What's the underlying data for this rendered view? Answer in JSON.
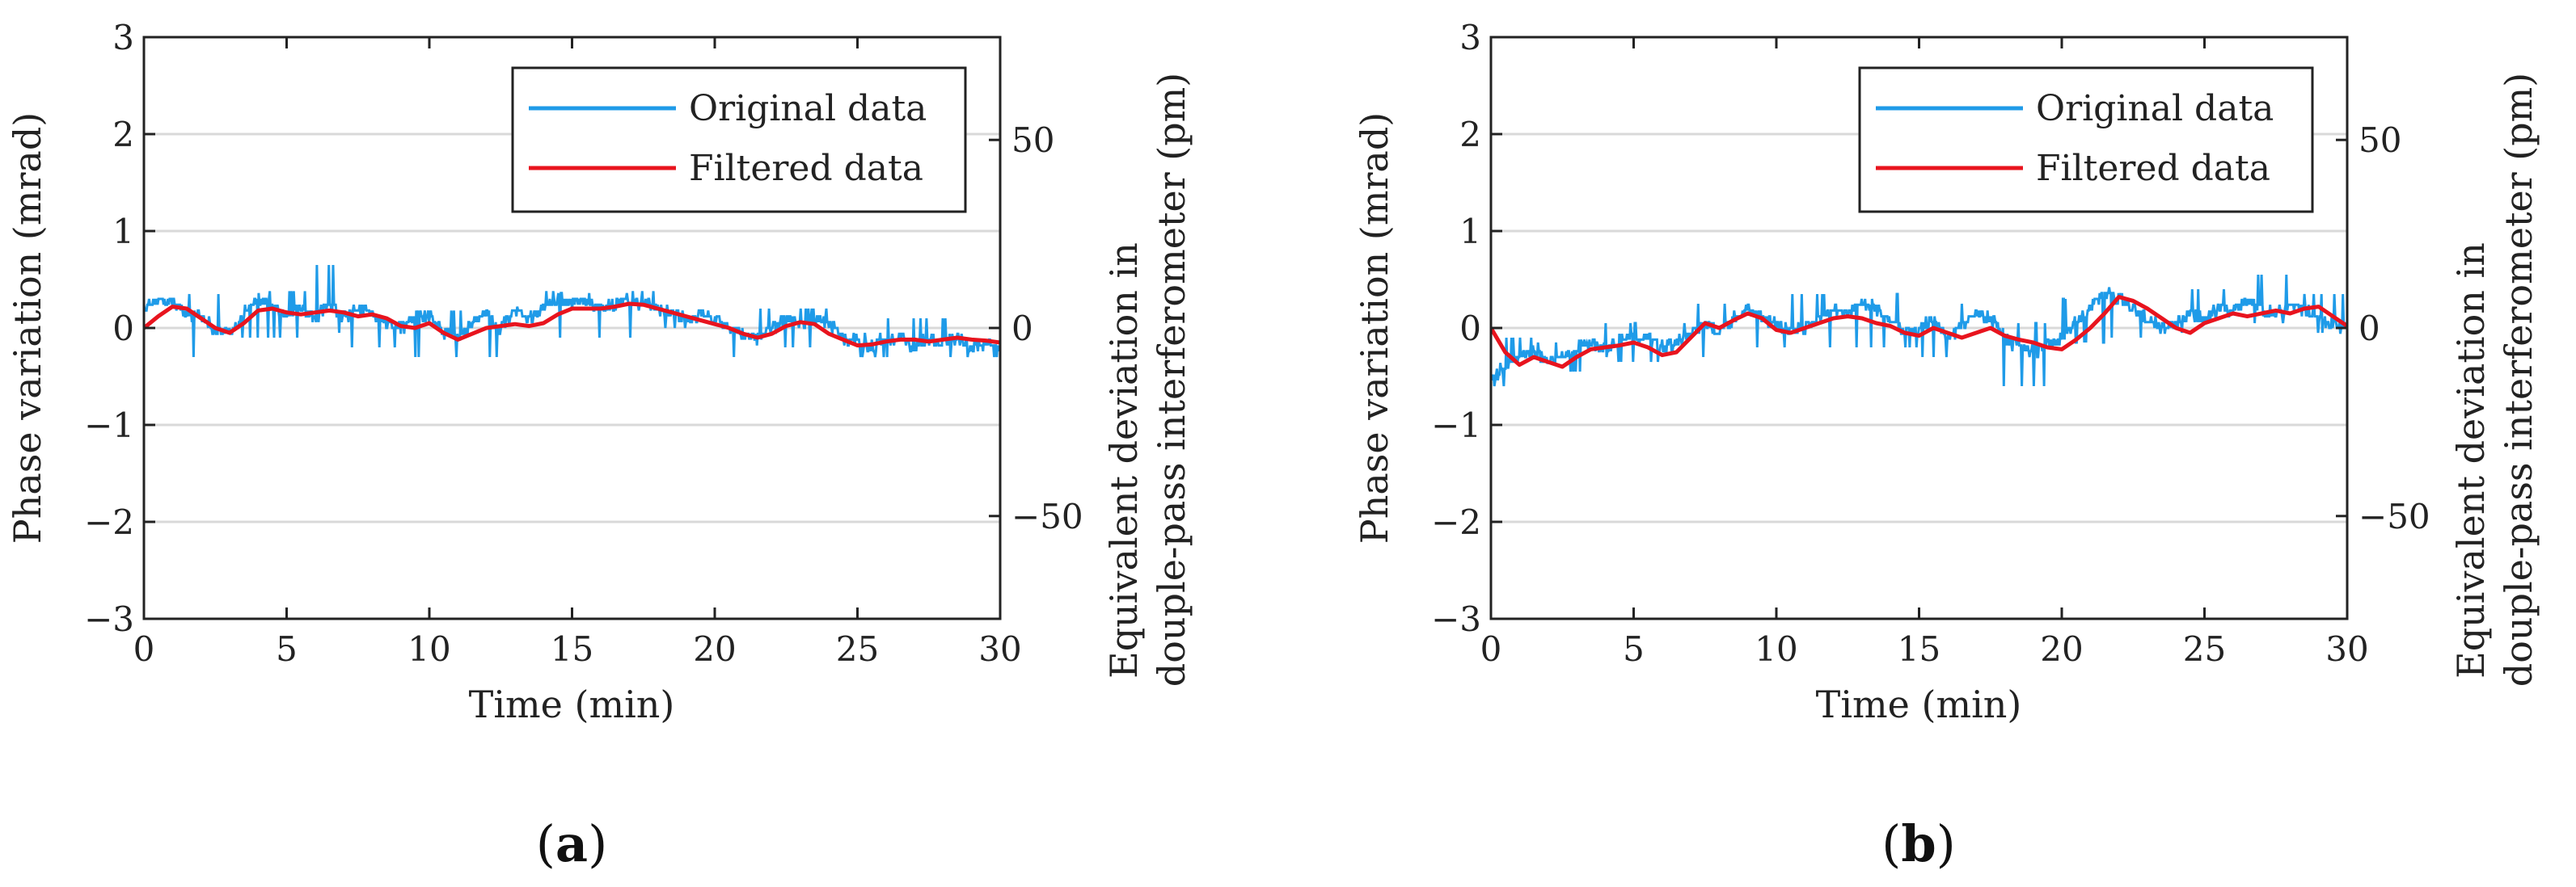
{
  "colors": {
    "original": "#1f9be8",
    "filtered": "#e8141e",
    "grid": "#d9d9d9",
    "axis": "#222222"
  },
  "chart_data": [
    {
      "type": "line",
      "panel_label": "(a)",
      "xlabel": "Time (min)",
      "ylabel": "Phase variation (mrad)",
      "ylabel_right": [
        "Equivalent  deviation in",
        "douple-pass interferometer (pm)"
      ],
      "xlim": [
        0,
        30
      ],
      "ylim": [
        -3,
        3
      ],
      "xticks": [
        0,
        5,
        10,
        15,
        20,
        25,
        30
      ],
      "yticks": [
        -3,
        -2,
        -1,
        0,
        1,
        2,
        3
      ],
      "yticks_right": [
        50,
        0,
        -50
      ],
      "yticks_right_mrad": [
        1.94,
        0,
        -1.94
      ],
      "grid": "horizontal",
      "legend_position": "top-right",
      "series": [
        {
          "name": "Original data",
          "x": [
            0,
            0.5,
            1,
            1.5,
            2,
            2.5,
            3,
            3.5,
            4,
            4.5,
            5,
            5.5,
            6,
            6.5,
            7,
            7.5,
            8,
            8.5,
            9,
            9.5,
            10,
            10.5,
            11,
            11.5,
            12,
            12.5,
            13,
            13.5,
            14,
            14.5,
            15,
            15.5,
            16,
            16.5,
            17,
            17.5,
            18,
            18.5,
            19,
            19.5,
            20,
            20.5,
            21,
            21.5,
            22,
            22.5,
            23,
            23.5,
            24,
            24.5,
            25,
            25.5,
            26,
            26.5,
            27,
            27.5,
            28,
            28.5,
            29,
            29.5,
            30
          ],
          "values": [
            0.2,
            0.3,
            0.25,
            0.15,
            0.1,
            0.0,
            -0.05,
            0.15,
            0.3,
            0.2,
            0.15,
            0.2,
            0.1,
            0.25,
            0.1,
            0.2,
            0.15,
            0.05,
            0.0,
            0.1,
            0.15,
            -0.05,
            -0.1,
            0.05,
            0.15,
            0.0,
            0.2,
            0.1,
            0.2,
            0.3,
            0.25,
            0.3,
            0.2,
            0.25,
            0.3,
            0.25,
            0.2,
            0.15,
            0.1,
            0.15,
            0.1,
            0.0,
            -0.05,
            -0.1,
            0.0,
            0.1,
            0.05,
            0.1,
            0.05,
            -0.1,
            -0.15,
            -0.2,
            -0.15,
            -0.1,
            -0.2,
            -0.1,
            -0.15,
            -0.1,
            -0.2,
            -0.15,
            -0.2
          ],
          "ranges": [
            [
              0,
              0.15,
              -0.1,
              0.38
            ],
            [
              1.5,
              3,
              -0.3,
              0.35
            ],
            [
              3,
              6,
              -0.1,
              0.38
            ],
            [
              6,
              7,
              -0.05,
              0.65
            ],
            [
              7,
              9.5,
              -0.2,
              0.35
            ],
            [
              9.5,
              13,
              -0.3,
              0.18
            ],
            [
              13,
              14,
              -0.1,
              0.22
            ],
            [
              14,
              18,
              -0.1,
              0.38
            ],
            [
              18,
              20.5,
              0.0,
              0.2
            ],
            [
              20.5,
              21.5,
              -0.3,
              0.15
            ],
            [
              21.5,
              24,
              -0.2,
              0.2
            ],
            [
              24,
              26,
              -0.3,
              -0.05
            ],
            [
              26,
              30,
              -0.3,
              0.1
            ]
          ]
        },
        {
          "name": "Filtered data",
          "x": [
            0,
            0.5,
            1,
            1.5,
            2,
            2.5,
            3,
            3.5,
            4,
            4.5,
            5,
            5.5,
            6,
            6.5,
            7,
            7.5,
            8,
            8.5,
            9,
            9.5,
            10,
            10.5,
            11,
            11.5,
            12,
            12.5,
            13,
            13.5,
            14,
            14.5,
            15,
            15.5,
            16,
            16.5,
            17,
            17.5,
            18,
            18.5,
            19,
            19.5,
            20,
            20.5,
            21,
            21.5,
            22,
            22.5,
            23,
            23.5,
            24,
            24.5,
            25,
            25.5,
            26,
            26.5,
            27,
            27.5,
            28,
            28.5,
            29,
            29.5,
            30
          ],
          "values": [
            0.0,
            0.12,
            0.22,
            0.2,
            0.1,
            0.0,
            -0.05,
            0.05,
            0.18,
            0.2,
            0.16,
            0.14,
            0.16,
            0.18,
            0.16,
            0.12,
            0.14,
            0.1,
            0.02,
            0.0,
            0.05,
            -0.05,
            -0.12,
            -0.06,
            0.0,
            0.02,
            0.04,
            0.02,
            0.05,
            0.14,
            0.2,
            0.2,
            0.2,
            0.22,
            0.25,
            0.24,
            0.2,
            0.16,
            0.12,
            0.08,
            0.04,
            0.0,
            -0.06,
            -0.1,
            -0.06,
            0.02,
            0.06,
            0.04,
            -0.06,
            -0.12,
            -0.18,
            -0.17,
            -0.14,
            -0.12,
            -0.12,
            -0.14,
            -0.12,
            -0.1,
            -0.12,
            -0.13,
            -0.15
          ]
        }
      ]
    },
    {
      "type": "line",
      "panel_label": "(b)",
      "xlabel": "Time (min)",
      "ylabel": "Phase variation (mrad)",
      "ylabel_right": [
        "Equivalent  deviation in",
        "douple-pass interferometer (pm)"
      ],
      "xlim": [
        0,
        30
      ],
      "ylim": [
        -3,
        3
      ],
      "xticks": [
        0,
        5,
        10,
        15,
        20,
        25,
        30
      ],
      "yticks": [
        -3,
        -2,
        -1,
        0,
        1,
        2,
        3
      ],
      "yticks_right": [
        50,
        0,
        -50
      ],
      "yticks_right_mrad": [
        1.94,
        0,
        -1.94
      ],
      "grid": "horizontal",
      "legend_position": "top-right",
      "series": [
        {
          "name": "Original data",
          "x": [
            0,
            0.5,
            1,
            1.5,
            2,
            2.5,
            3,
            3.5,
            4,
            4.5,
            5,
            5.5,
            6,
            6.5,
            7,
            7.5,
            8,
            8.5,
            9,
            9.5,
            10,
            10.5,
            11,
            11.5,
            12,
            12.5,
            13,
            13.5,
            14,
            14.5,
            15,
            15.5,
            16,
            16.5,
            17,
            17.5,
            18,
            18.5,
            19,
            19.5,
            20,
            20.5,
            21,
            21.5,
            22,
            22.5,
            23,
            23.5,
            24,
            24.5,
            25,
            25.5,
            26,
            26.5,
            27,
            27.5,
            28,
            28.5,
            29,
            29.5,
            30
          ],
          "values": [
            -0.5,
            -0.4,
            -0.3,
            -0.25,
            -0.35,
            -0.3,
            -0.2,
            -0.15,
            -0.25,
            -0.1,
            -0.15,
            -0.1,
            -0.2,
            -0.15,
            -0.05,
            0.05,
            -0.05,
            0.1,
            0.2,
            0.1,
            0.05,
            -0.05,
            0.0,
            0.1,
            0.2,
            0.15,
            0.25,
            0.2,
            0.1,
            -0.05,
            0.0,
            0.1,
            -0.1,
            0.0,
            0.15,
            0.1,
            -0.1,
            -0.2,
            -0.25,
            -0.15,
            -0.1,
            0.05,
            0.2,
            0.35,
            0.3,
            0.2,
            0.1,
            0.0,
            0.05,
            0.15,
            0.1,
            0.2,
            0.15,
            0.3,
            0.2,
            0.15,
            0.25,
            0.2,
            0.1,
            0.05,
            0.0
          ],
          "ranges": [
            [
              0,
              1.5,
              -0.6,
              -0.1
            ],
            [
              1.5,
              4,
              -0.45,
              -0.15
            ],
            [
              4,
              7,
              -0.35,
              0.05
            ],
            [
              7,
              9,
              -0.3,
              0.25
            ],
            [
              9,
              12,
              -0.2,
              0.35
            ],
            [
              12,
              15,
              -0.2,
              0.35
            ],
            [
              15,
              17,
              -0.3,
              0.25
            ],
            [
              17,
              20,
              -0.6,
              0.05
            ],
            [
              20,
              21.5,
              -0.15,
              0.3
            ],
            [
              21.5,
              24,
              -0.1,
              0.55
            ],
            [
              24,
              26.5,
              -0.05,
              0.4
            ],
            [
              26.5,
              28.5,
              0.05,
              0.55
            ],
            [
              28.5,
              30,
              -0.05,
              0.35
            ]
          ]
        },
        {
          "name": "Filtered data",
          "x": [
            0,
            0.5,
            1,
            1.5,
            2,
            2.5,
            3,
            3.5,
            4,
            4.5,
            5,
            5.5,
            6,
            6.5,
            7,
            7.5,
            8,
            8.5,
            9,
            9.5,
            10,
            10.5,
            11,
            11.5,
            12,
            12.5,
            13,
            13.5,
            14,
            14.5,
            15,
            15.5,
            16,
            16.5,
            17,
            17.5,
            18,
            18.5,
            19,
            19.5,
            20,
            20.5,
            21,
            21.5,
            22,
            22.5,
            23,
            23.5,
            24,
            24.5,
            25,
            25.5,
            26,
            26.5,
            27,
            27.5,
            28,
            28.5,
            29,
            29.5,
            30
          ],
          "values": [
            0.0,
            -0.25,
            -0.38,
            -0.3,
            -0.35,
            -0.4,
            -0.3,
            -0.22,
            -0.2,
            -0.18,
            -0.15,
            -0.2,
            -0.28,
            -0.25,
            -0.1,
            0.05,
            0.0,
            0.08,
            0.15,
            0.1,
            -0.02,
            -0.05,
            0.0,
            0.05,
            0.1,
            0.12,
            0.1,
            0.05,
            0.02,
            -0.05,
            -0.08,
            0.0,
            -0.05,
            -0.1,
            -0.05,
            0.0,
            -0.08,
            -0.12,
            -0.15,
            -0.2,
            -0.22,
            -0.12,
            0.0,
            0.15,
            0.32,
            0.28,
            0.2,
            0.1,
            0.0,
            -0.05,
            0.05,
            0.1,
            0.15,
            0.12,
            0.15,
            0.18,
            0.15,
            0.2,
            0.22,
            0.12,
            0.02
          ]
        }
      ]
    }
  ]
}
